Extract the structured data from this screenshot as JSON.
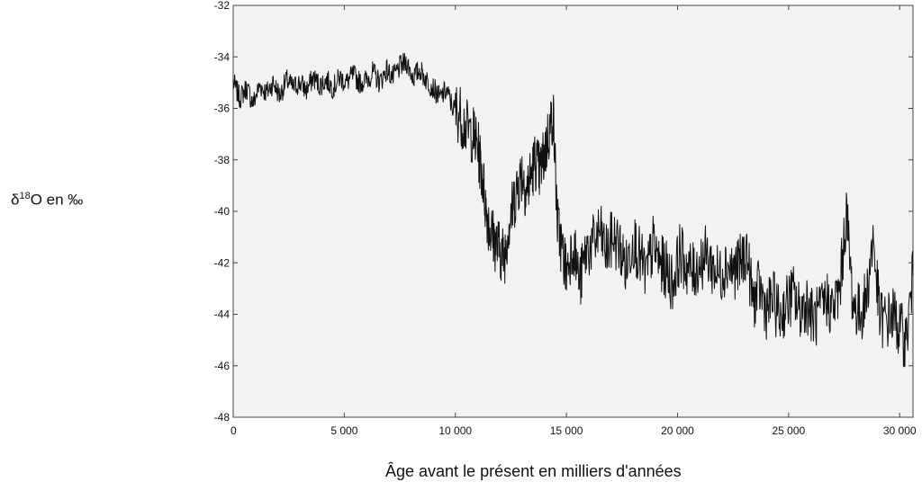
{
  "chart_data": {
    "type": "line",
    "title": "",
    "ylabel": {
      "prefix": "δ",
      "superscript": "18",
      "suffix": "O en ‰"
    },
    "xlabel": "Âge avant le présent en milliers d'années",
    "xlim": [
      0,
      30600
    ],
    "ylim": [
      -48,
      -32
    ],
    "x_ticks": [
      0,
      5000,
      10000,
      15000,
      20000,
      25000,
      30000
    ],
    "x_tick_labels": [
      "0",
      "5 000",
      "10 000",
      "15 000",
      "20 000",
      "25 000",
      "30 000"
    ],
    "y_ticks": [
      -48,
      -46,
      -44,
      -42,
      -40,
      -38,
      -36,
      -34,
      -32
    ],
    "y_tick_labels": [
      "-48",
      "-46",
      "-44",
      "-42",
      "-40",
      "-38",
      "-36",
      "-34",
      "-32"
    ],
    "grid": false,
    "series": [
      {
        "color": "#111111",
        "x": [
          0,
          300,
          600,
          900,
          1200,
          1500,
          1800,
          2100,
          2400,
          2700,
          3000,
          3300,
          3600,
          3900,
          4200,
          4500,
          4800,
          5100,
          5400,
          5700,
          6000,
          6300,
          6600,
          6900,
          7200,
          7500,
          7800,
          8100,
          8400,
          8700,
          9000,
          9300,
          9600,
          9900,
          10200,
          10500,
          10800,
          11000,
          11200,
          11400,
          11600,
          11800,
          12000,
          12200,
          12400,
          12600,
          12800,
          13000,
          13200,
          13400,
          13600,
          13800,
          14000,
          14200,
          14400,
          14600,
          14800,
          15000,
          15300,
          15600,
          15900,
          16200,
          16500,
          16800,
          17100,
          17400,
          17700,
          18000,
          18300,
          18600,
          18900,
          19200,
          19500,
          19800,
          20100,
          20400,
          20700,
          21000,
          21300,
          21600,
          21900,
          22200,
          22500,
          22800,
          23100,
          23400,
          23700,
          24000,
          24300,
          24600,
          24900,
          25200,
          25500,
          25800,
          26100,
          26400,
          26700,
          27000,
          27300,
          27600,
          27900,
          28200,
          28500,
          28800,
          29100,
          29400,
          29700,
          30000,
          30300,
          30600
        ],
        "values": [
          -35.0,
          -35.6,
          -35.2,
          -35.8,
          -35.1,
          -35.4,
          -35.0,
          -35.5,
          -34.9,
          -35.2,
          -35.0,
          -35.3,
          -34.8,
          -35.1,
          -34.9,
          -35.2,
          -34.8,
          -35.0,
          -34.7,
          -35.0,
          -34.9,
          -34.6,
          -35.0,
          -34.5,
          -34.8,
          -34.4,
          -34.2,
          -34.8,
          -34.5,
          -34.9,
          -35.2,
          -35.6,
          -35.3,
          -36.0,
          -36.2,
          -36.8,
          -37.0,
          -37.5,
          -38.5,
          -40.0,
          -40.8,
          -41.2,
          -41.5,
          -41.8,
          -40.5,
          -39.8,
          -39.0,
          -38.5,
          -39.2,
          -38.6,
          -38.0,
          -38.5,
          -37.8,
          -37.0,
          -36.2,
          -40.5,
          -41.5,
          -42.3,
          -41.2,
          -42.8,
          -41.5,
          -41.3,
          -40.8,
          -41.6,
          -41.0,
          -41.4,
          -42.2,
          -41.0,
          -41.8,
          -42.5,
          -41.3,
          -42.0,
          -42.3,
          -42.8,
          -41.6,
          -42.1,
          -42.4,
          -42.0,
          -41.7,
          -42.2,
          -42.5,
          -42.0,
          -42.3,
          -42.1,
          -41.5,
          -43.5,
          -43.0,
          -43.8,
          -43.4,
          -44.1,
          -43.6,
          -43.2,
          -43.9,
          -43.5,
          -44.2,
          -44.0,
          -43.4,
          -43.8,
          -43.1,
          -40.0,
          -43.6,
          -44.0,
          -43.4,
          -41.0,
          -44.1,
          -44.3,
          -44.0,
          -44.6,
          -45.0,
          -42.5
        ]
      }
    ]
  }
}
